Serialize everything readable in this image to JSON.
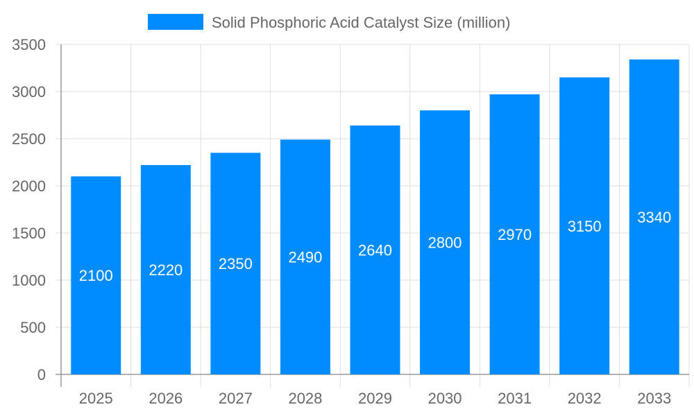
{
  "chart_data": {
    "type": "bar",
    "title": "",
    "xlabel": "",
    "ylabel": "",
    "categories": [
      "2025",
      "2026",
      "2027",
      "2028",
      "2029",
      "2030",
      "2031",
      "2032",
      "2033"
    ],
    "series": [
      {
        "name": "Solid Phosphoric Acid Catalyst Size (million)",
        "values": [
          2100,
          2220,
          2350,
          2490,
          2640,
          2800,
          2970,
          3150,
          3340
        ],
        "color": "#008cff"
      }
    ],
    "ylim": [
      0,
      3500
    ],
    "yticks": [
      0,
      500,
      1000,
      1500,
      2000,
      2500,
      3000,
      3500
    ],
    "grid": true,
    "legend_position": "top",
    "data_labels": "inside-center"
  }
}
